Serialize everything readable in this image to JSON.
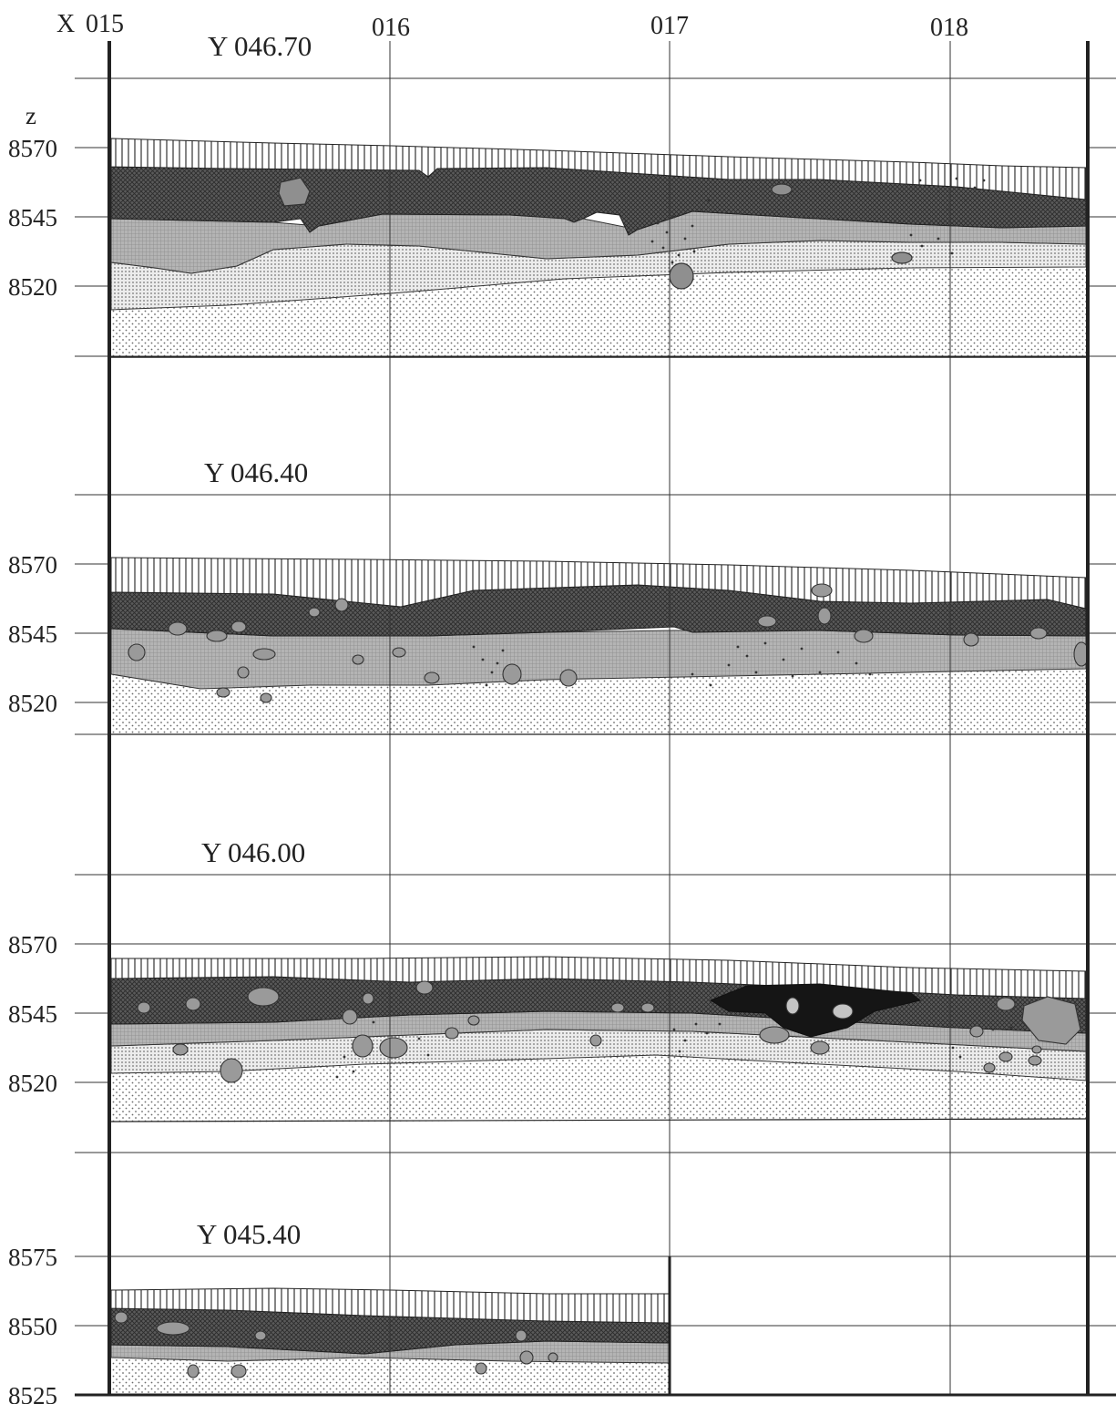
{
  "x_axis": {
    "prefix": "X",
    "ticks": [
      "015",
      "016",
      "017",
      "018"
    ]
  },
  "z_axis_label": "z",
  "colors": {
    "line": "#2a2a2a",
    "topsoil_hatch": "#333333",
    "dark_layer": "#4a4a4a",
    "mid_layer": "#9a9a9a",
    "light_layer": "#bdbdbd",
    "sand_dots": "#6d6d6d",
    "stone": "#8f8f8f",
    "ash_pit": "#151515"
  },
  "sections": [
    {
      "title": "Y 046.70",
      "z_ticks": [
        "8570",
        "8545",
        "8520"
      ],
      "extent": [
        "015",
        "018.5"
      ]
    },
    {
      "title": "Y 046.40",
      "z_ticks": [
        "8570",
        "8545",
        "8520"
      ],
      "extent": [
        "015",
        "018.5"
      ]
    },
    {
      "title": "Y 046.00",
      "z_ticks": [
        "8570",
        "8545",
        "8520"
      ],
      "extent": [
        "015",
        "018.5"
      ]
    },
    {
      "title": "Y 045.40",
      "z_ticks": [
        "8575",
        "8550",
        "8525"
      ],
      "extent": [
        "015",
        "017"
      ]
    }
  ]
}
